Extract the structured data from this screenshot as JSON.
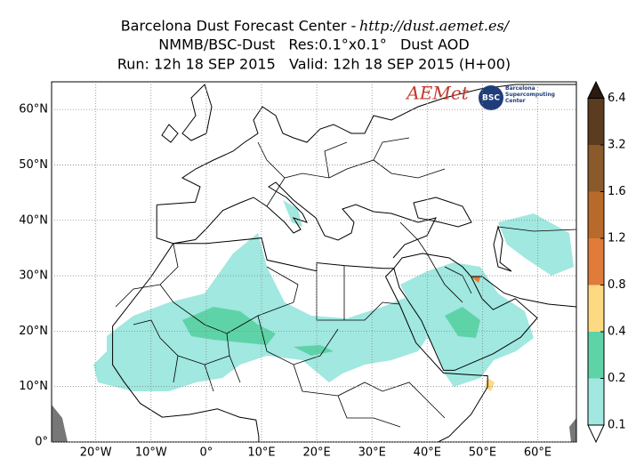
{
  "chart_data": {
    "type": "map",
    "title": "Barcelona Dust Forecast Center -",
    "title_url": "http://dust.aemet.es/",
    "subtitle": "NMMB/BSC-Dust   Res:0.1°x0.1°   Dust AOD",
    "run_info": "Run: 12h 18 SEP 2015   Valid: 12h 18 SEP 2015 (H+00)",
    "xlim": [
      -28,
      67
    ],
    "ylim": [
      0,
      65
    ],
    "xticks": [
      {
        "value": -20,
        "label": "20°W"
      },
      {
        "value": -10,
        "label": "10°W"
      },
      {
        "value": 0,
        "label": "0°"
      },
      {
        "value": 10,
        "label": "10°E"
      },
      {
        "value": 20,
        "label": "20°E"
      },
      {
        "value": 30,
        "label": "30°E"
      },
      {
        "value": 40,
        "label": "40°E"
      },
      {
        "value": 50,
        "label": "50°E"
      },
      {
        "value": 60,
        "label": "60°E"
      }
    ],
    "yticks": [
      {
        "value": 0,
        "label": "0°"
      },
      {
        "value": 10,
        "label": "10°N"
      },
      {
        "value": 20,
        "label": "20°N"
      },
      {
        "value": 30,
        "label": "30°N"
      },
      {
        "value": 40,
        "label": "40°N"
      },
      {
        "value": 50,
        "label": "50°N"
      },
      {
        "value": 60,
        "label": "60°N"
      }
    ],
    "grid": true,
    "colorbar": {
      "levels": [
        0.1,
        0.2,
        0.4,
        0.8,
        1.2,
        1.6,
        3.2,
        6.4
      ],
      "colors": [
        "#a0e8e0",
        "#5fd3a8",
        "#fdd981",
        "#e07b39",
        "#b86a2a",
        "#8b5a2b",
        "#5c3c1e"
      ],
      "under_color": "#ffffff",
      "over_color": "#2b1a0d"
    },
    "logos": {
      "aemet": "AEMet",
      "bsc": "BSC",
      "bsc_name": "Barcelona Supercomputing Center"
    }
  }
}
